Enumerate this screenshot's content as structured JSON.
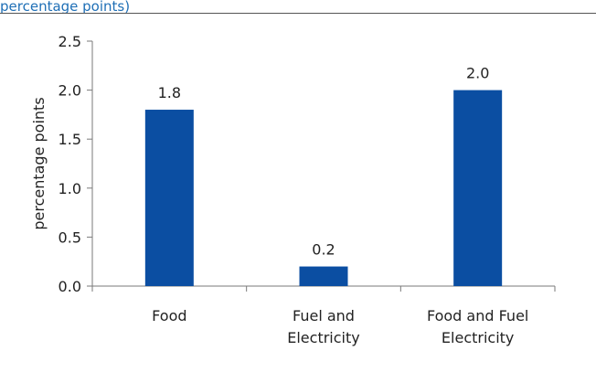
{
  "header": {
    "text": "percentage points)"
  },
  "chart_data": {
    "type": "bar",
    "categories": [
      [
        "Food"
      ],
      [
        "Fuel and",
        "Electricity"
      ],
      [
        "Food and Fuel",
        "Electricity"
      ]
    ],
    "values": [
      1.8,
      0.2,
      2.0
    ],
    "value_labels": [
      "1.8",
      "0.2",
      "2.0"
    ],
    "bar_color": "#0b4ea2",
    "ylabel": "percentage points",
    "ylim": [
      0,
      2.5
    ],
    "yticks": [
      0.0,
      0.5,
      1.0,
      1.5,
      2.0,
      2.5
    ],
    "ytick_labels": [
      "0.0",
      "0.5",
      "1.0",
      "1.5",
      "2.0",
      "2.5"
    ],
    "grid": false,
    "legend": "none"
  }
}
